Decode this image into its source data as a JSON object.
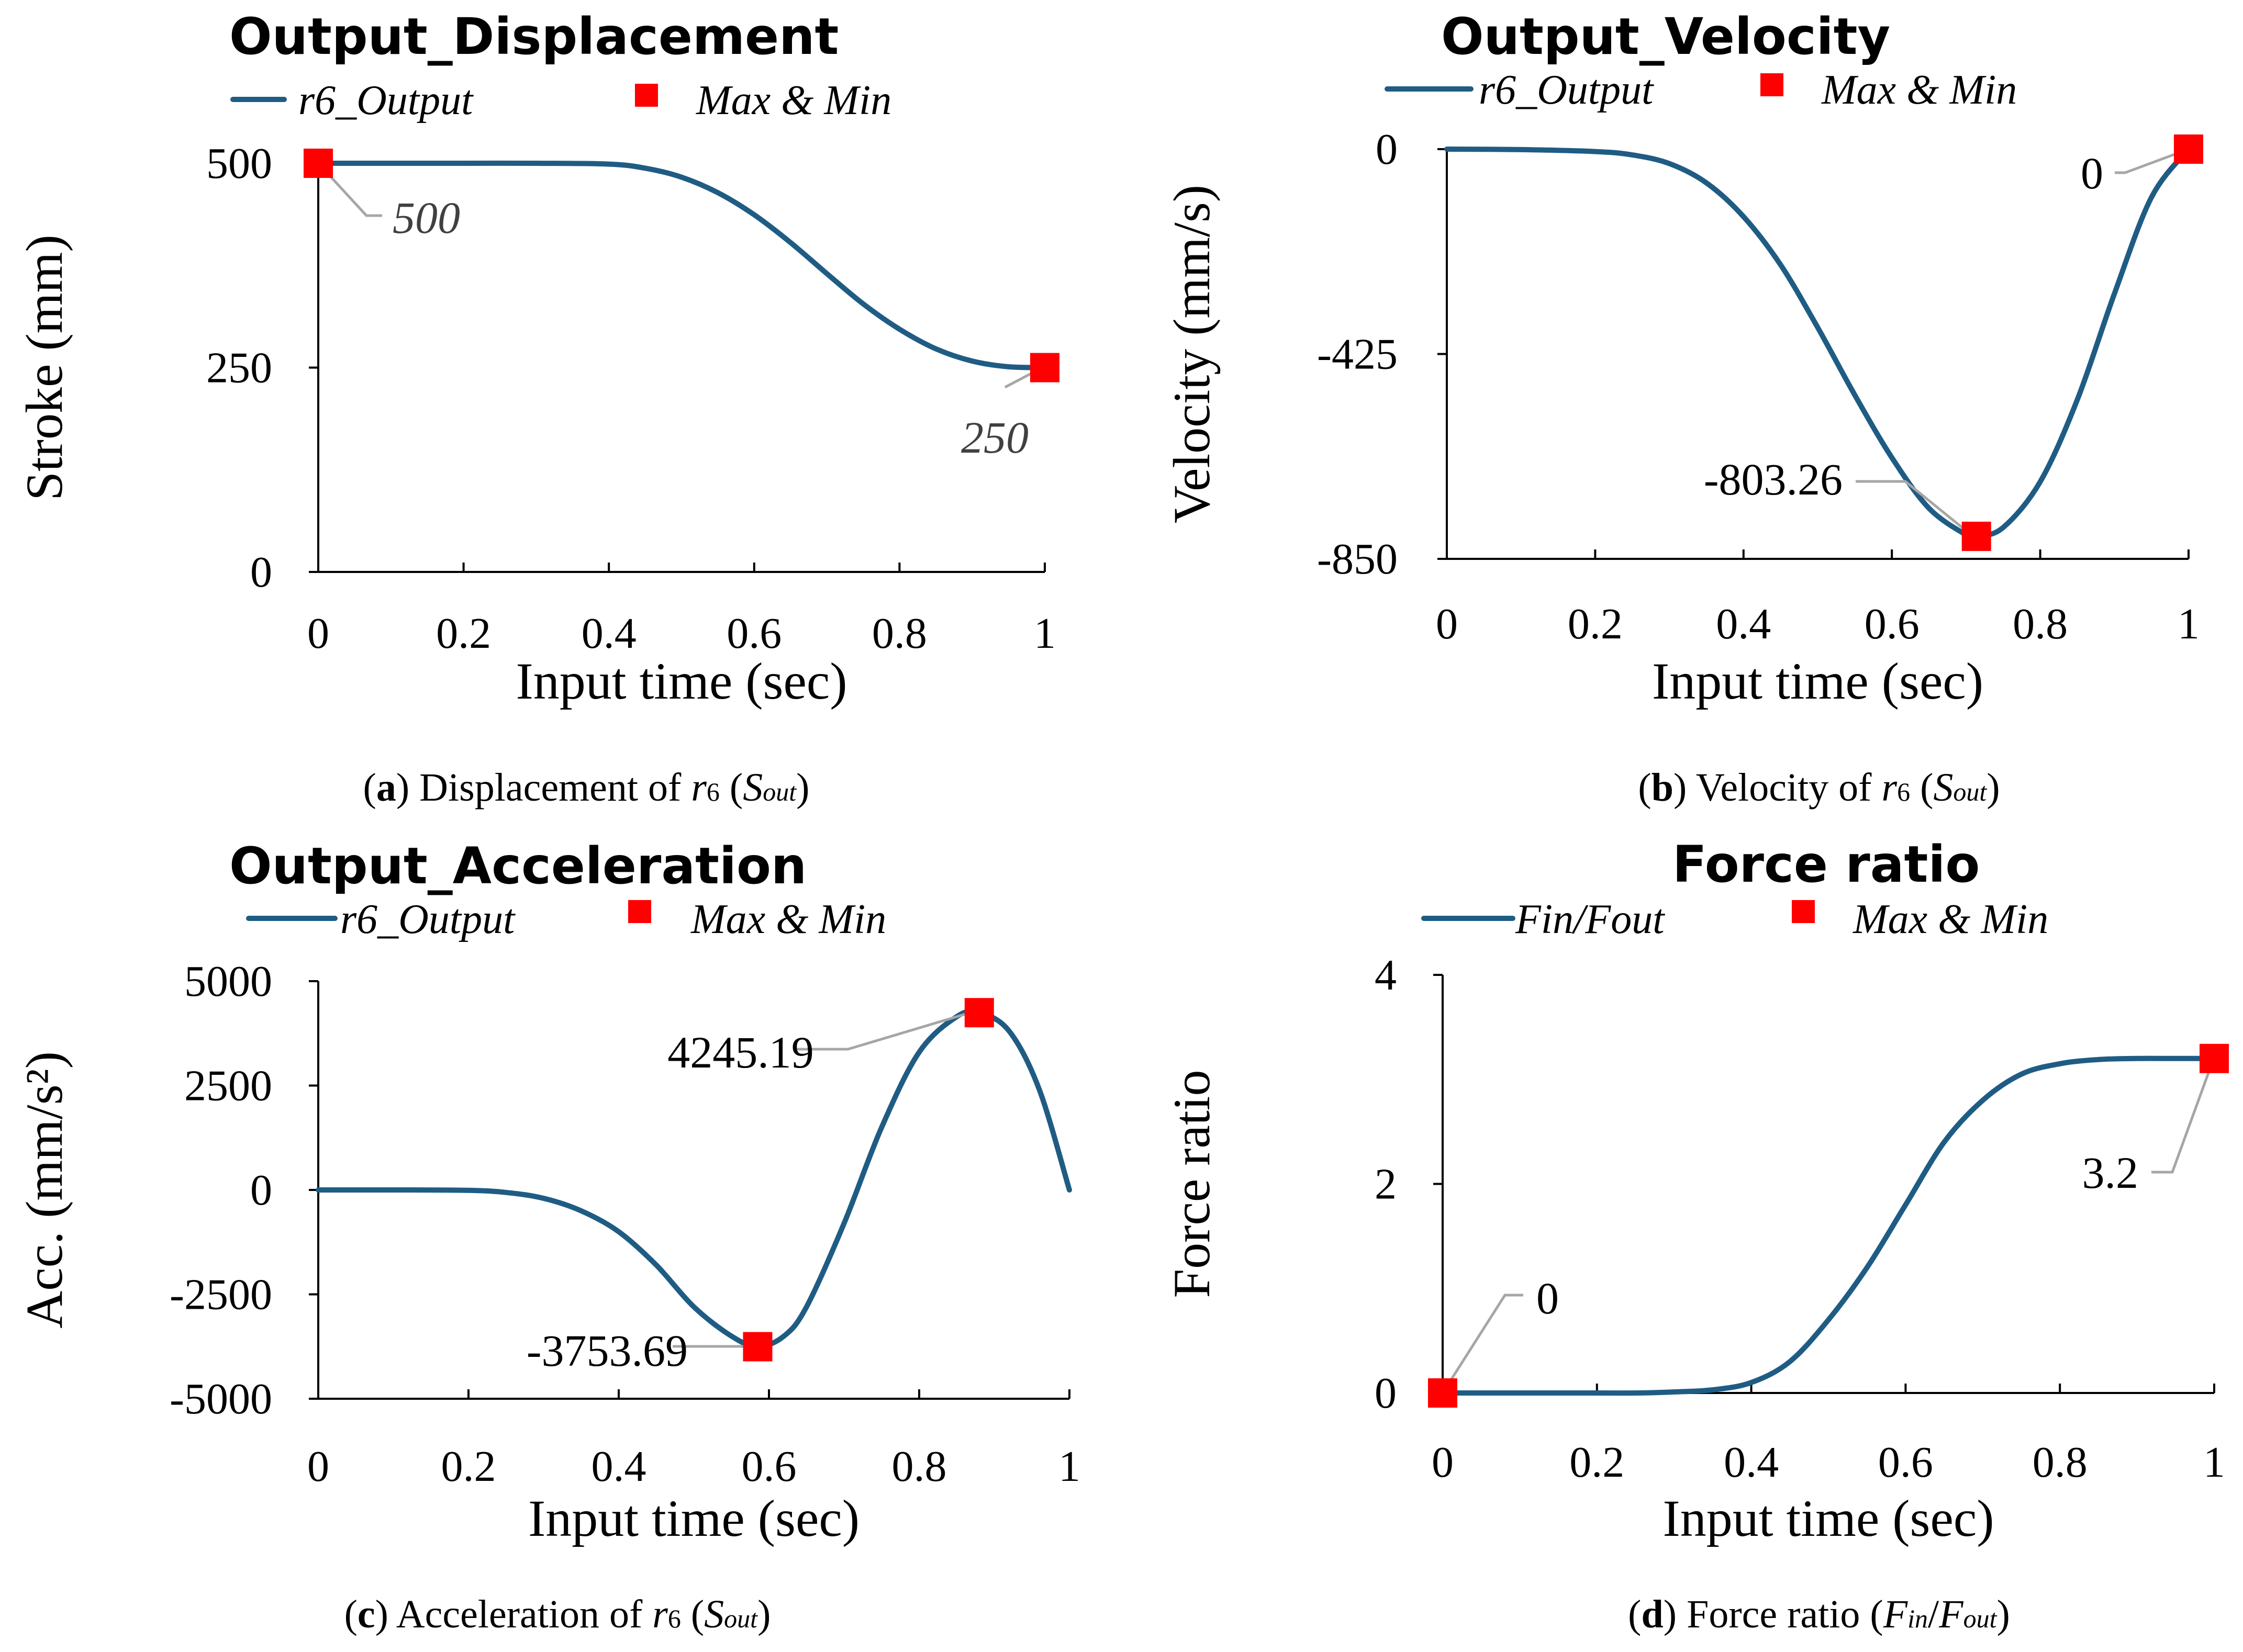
{
  "chart_data": [
    {
      "id": "a",
      "type": "line",
      "title": "Output_Displacement",
      "xlabel": "Input time (sec)",
      "ylabel": "Stroke (mm)",
      "xlim": [
        0,
        1
      ],
      "ylim": [
        0,
        500
      ],
      "xticks": [
        0,
        0.2,
        0.4,
        0.6,
        0.8,
        1
      ],
      "xtick_labels": [
        "0",
        "0.2",
        "0.4",
        "0.6",
        "0.8",
        "1"
      ],
      "yticks": [
        0,
        250,
        500
      ],
      "ytick_labels": [
        "0",
        "250",
        "500"
      ],
      "legend": [
        "r6_Output",
        "Max & Min"
      ],
      "legend_position": "top",
      "series": [
        {
          "name": "r6_Output",
          "x": [
            0,
            0.1,
            0.2,
            0.3,
            0.4,
            0.45,
            0.5,
            0.55,
            0.6,
            0.65,
            0.7,
            0.75,
            0.8,
            0.85,
            0.9,
            0.95,
            1.0
          ],
          "values": [
            500,
            500,
            500,
            500,
            499,
            494,
            483,
            464,
            437,
            403,
            365,
            328,
            297,
            273,
            258,
            251,
            250
          ]
        }
      ],
      "markers": [
        {
          "x": 0,
          "y": 500,
          "label": "500"
        },
        {
          "x": 1,
          "y": 250,
          "label": "250"
        }
      ],
      "caption_letter": "a",
      "caption_text": " Displacement of ",
      "caption_r": "r",
      "caption_r_sub": "6",
      "caption_s": "S",
      "caption_s_sub": "out",
      "caption_open": " (",
      "caption_close": ")"
    },
    {
      "id": "b",
      "type": "line",
      "title": "Output_Velocity",
      "xlabel": "Input time (sec)",
      "ylabel": "Velocity (mm/s)",
      "xlim": [
        0,
        1
      ],
      "ylim": [
        -850,
        0
      ],
      "xticks": [
        0,
        0.2,
        0.4,
        0.6,
        0.8,
        1
      ],
      "xtick_labels": [
        "0",
        "0.2",
        "0.4",
        "0.6",
        "0.8",
        "1"
      ],
      "yticks": [
        0,
        -425,
        -850
      ],
      "ytick_labels": [
        "0",
        "-425",
        "-850"
      ],
      "legend": [
        "r6_Output",
        "Max & Min"
      ],
      "legend_position": "top",
      "series": [
        {
          "name": "r6_Output",
          "x": [
            0,
            0.1,
            0.2,
            0.25,
            0.3,
            0.35,
            0.4,
            0.45,
            0.5,
            0.55,
            0.6,
            0.65,
            0.7,
            0.714,
            0.75,
            0.8,
            0.85,
            0.9,
            0.95,
            1.0
          ],
          "values": [
            0,
            -1,
            -5,
            -12,
            -30,
            -70,
            -140,
            -240,
            -370,
            -510,
            -640,
            -745,
            -800,
            -803.26,
            -785,
            -690,
            -520,
            -300,
            -100,
            0
          ]
        }
      ],
      "markers": [
        {
          "x": 0.714,
          "y": -803.26,
          "label": "-803.26"
        },
        {
          "x": 1,
          "y": 0,
          "label": "0"
        }
      ],
      "caption_letter": "b",
      "caption_text": " Velocity of ",
      "caption_r": "r",
      "caption_r_sub": "6",
      "caption_s": "S",
      "caption_s_sub": "out",
      "caption_open": " (",
      "caption_close": ")"
    },
    {
      "id": "c",
      "type": "line",
      "title": "Output_Acceleration",
      "xlabel": "Input time (sec)",
      "ylabel": "Acc. (mm/s²)",
      "xlim": [
        0,
        1
      ],
      "ylim": [
        -5000,
        5000
      ],
      "xticks": [
        0,
        0.2,
        0.4,
        0.6,
        0.8,
        1
      ],
      "xtick_labels": [
        "0",
        "0.2",
        "0.4",
        "0.6",
        "0.8",
        "1"
      ],
      "yticks": [
        5000,
        2500,
        0,
        -2500,
        -5000
      ],
      "ytick_labels": [
        "5000",
        "2500",
        "0",
        "-2500",
        "-5000"
      ],
      "legend": [
        "r6_Output",
        "Max & Min"
      ],
      "legend_position": "top",
      "series": [
        {
          "name": "r6_Output",
          "x": [
            0,
            0.1,
            0.2,
            0.25,
            0.3,
            0.35,
            0.4,
            0.45,
            0.5,
            0.55,
            0.585,
            0.62,
            0.65,
            0.7,
            0.75,
            0.8,
            0.85,
            0.88,
            0.92,
            0.96,
            1.0
          ],
          "values": [
            0,
            0,
            -10,
            -60,
            -200,
            -500,
            -1000,
            -1800,
            -2800,
            -3500,
            -3753.69,
            -3500,
            -2800,
            -800,
            1500,
            3300,
            4150,
            4245.19,
            3800,
            2400,
            0
          ]
        }
      ],
      "markers": [
        {
          "x": 0.585,
          "y": -3753.69,
          "label": "-3753.69"
        },
        {
          "x": 0.88,
          "y": 4245.19,
          "label": "4245.19"
        }
      ],
      "caption_letter": "c",
      "caption_text": " Acceleration of ",
      "caption_r": "r",
      "caption_r_sub": "6",
      "caption_s": "S",
      "caption_s_sub": "out",
      "caption_open": " (",
      "caption_close": ")"
    },
    {
      "id": "d",
      "type": "line",
      "title": "Force ratio",
      "xlabel": "Input time (sec)",
      "ylabel": "Force ratio",
      "xlim": [
        0,
        1
      ],
      "ylim": [
        0,
        4
      ],
      "xticks": [
        0,
        0.2,
        0.4,
        0.6,
        0.8,
        1
      ],
      "xtick_labels": [
        "0",
        "0.2",
        "0.4",
        "0.6",
        "0.8",
        "1"
      ],
      "yticks": [
        0,
        2,
        4
      ],
      "ytick_labels": [
        "0",
        "2",
        "4"
      ],
      "legend": [
        "Fin/Fout",
        "Max & Min"
      ],
      "legend_position": "top",
      "series": [
        {
          "name": "Fin/Fout",
          "x": [
            0,
            0.1,
            0.2,
            0.25,
            0.3,
            0.35,
            0.4,
            0.45,
            0.5,
            0.55,
            0.6,
            0.65,
            0.7,
            0.75,
            0.8,
            0.85,
            0.9,
            0.95,
            1.0
          ],
          "values": [
            0,
            0,
            0,
            0,
            0.01,
            0.03,
            0.1,
            0.3,
            0.7,
            1.2,
            1.8,
            2.4,
            2.8,
            3.05,
            3.15,
            3.19,
            3.2,
            3.2,
            3.2
          ]
        }
      ],
      "markers": [
        {
          "x": 0,
          "y": 0,
          "label": "0"
        },
        {
          "x": 1,
          "y": 3.2,
          "label": "3.2"
        }
      ],
      "caption_letter": "d",
      "caption_text": " Force ratio ",
      "caption_f1": "F",
      "caption_f1_sub": "in",
      "caption_slash": "/",
      "caption_f2": "F",
      "caption_f2_sub": "out",
      "caption_open": "(",
      "caption_close": ")"
    }
  ],
  "colors": {
    "series": "#1f5c84",
    "marker": "#ff0000",
    "leader": "#a6a6a6"
  }
}
